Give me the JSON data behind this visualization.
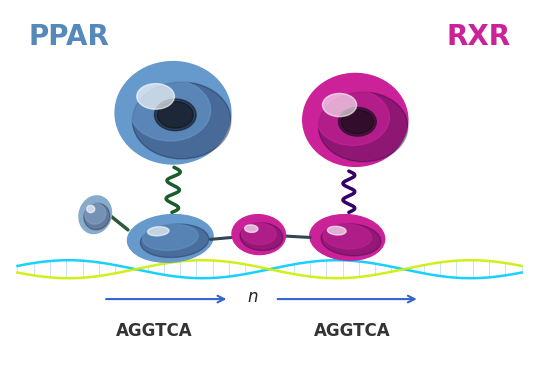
{
  "ppar_label": "PPAR",
  "rxr_label": "RXR",
  "ppar_color_main": "#6699CC",
  "ppar_color_light": "#88BBDD",
  "rxr_color_main": "#CC2299",
  "rxr_color_light": "#EE44BB",
  "linker_green": "#1A5C2A",
  "linker_purple": "#330066",
  "dna_cyan": "#00CCFF",
  "dna_yellow": "#CCEE00",
  "dna_link": "#99CCFF",
  "arrow_color": "#3366CC",
  "text_ppar": "#5588BB",
  "text_rxr": "#CC2299",
  "seq_color": "#333333",
  "n_color": "#222222",
  "bg_color": "#FFFFFF",
  "seq1": "AGGTCA",
  "seq2": "AGGTCA",
  "n_label": "n",
  "figsize": [
    5.39,
    3.82
  ],
  "dpi": 100
}
